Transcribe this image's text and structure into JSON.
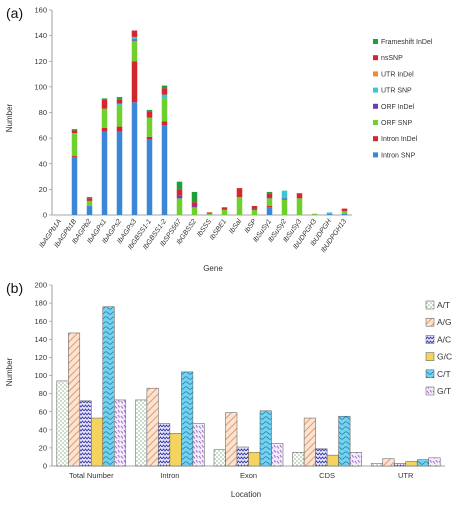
{
  "chart_data": [
    {
      "type": "bar",
      "stacked": true,
      "panel_label": "(a)",
      "xlabel": "Gene",
      "ylabel": "Number",
      "ylim": [
        0,
        160
      ],
      "yticks": [
        0,
        20,
        40,
        60,
        80,
        100,
        120,
        140,
        160
      ],
      "legend_position": "right",
      "categories": [
        "IbAGPb1A",
        "IbAGPb1B",
        "IbAGPb2",
        "IbAGPs1",
        "IbAGPs2",
        "IbAGPs3",
        "IbGBSS1-1",
        "IbGBSS1-2",
        "IbSPS567",
        "IbGBSS2",
        "IbSSS",
        "IbSBE1",
        "IbSal",
        "IbSP",
        "IbSuSy1",
        "IbSuSy2",
        "IbSuSy3",
        "IbUDPGH3",
        "IbUDPGH",
        "IbUDPGH13"
      ],
      "series": [
        {
          "name": "Intron SNP",
          "color": "#3b86d6",
          "values": [
            0,
            45,
            7,
            65,
            65,
            88,
            59,
            70,
            0,
            0,
            0,
            0,
            0,
            0,
            6,
            0,
            0,
            0,
            1,
            1
          ]
        },
        {
          "name": "Intron InDel",
          "color": "#d4262e",
          "values": [
            0,
            1,
            0,
            3,
            4,
            32,
            2,
            3,
            0,
            0,
            0,
            0,
            0,
            0,
            1,
            0,
            0,
            0,
            0,
            0
          ]
        },
        {
          "name": "ORF SNP",
          "color": "#6fcf2c",
          "values": [
            0,
            18,
            4,
            15,
            16,
            16,
            15,
            18,
            13,
            6,
            1,
            4,
            14,
            4,
            6,
            12,
            13,
            1,
            0,
            2
          ]
        },
        {
          "name": "ORF InDel",
          "color": "#6a3db3",
          "values": [
            0,
            0,
            0,
            0,
            0,
            1,
            0,
            0,
            2,
            1,
            0,
            0,
            0,
            1,
            1,
            1,
            0,
            0,
            0,
            0
          ]
        },
        {
          "name": "UTR SNP",
          "color": "#3cc6cf",
          "values": [
            0,
            0,
            0,
            0,
            2,
            2,
            0,
            3,
            0,
            0,
            0,
            0,
            0,
            0,
            0,
            6,
            0,
            0,
            1,
            0
          ]
        },
        {
          "name": "UTR InDel",
          "color": "#f48a22",
          "values": [
            0,
            0,
            0,
            0,
            0,
            0,
            0,
            0,
            0,
            0,
            0,
            0,
            0,
            0,
            0,
            0,
            0,
            0,
            0,
            0
          ]
        },
        {
          "name": "nsSNP",
          "color": "#d4262e",
          "values": [
            0,
            2,
            2,
            7,
            3,
            5,
            5,
            5,
            5,
            3,
            1,
            2,
            7,
            2,
            3,
            0,
            4,
            0,
            0,
            2
          ]
        },
        {
          "name": "Frameshift InDel",
          "color": "#1f9e3a",
          "values": [
            0,
            1,
            1,
            1,
            2,
            0,
            1,
            2,
            6,
            8,
            0,
            0,
            0,
            0,
            1,
            0,
            0,
            0,
            0,
            0
          ]
        }
      ]
    },
    {
      "type": "bar",
      "panel_label": "(b)",
      "xlabel": "Location",
      "ylabel": "Number",
      "ylim": [
        0,
        200
      ],
      "yticks": [
        0,
        20,
        40,
        60,
        80,
        100,
        120,
        140,
        160,
        180,
        200
      ],
      "legend_position": "right",
      "categories": [
        "Total Number",
        "Intron",
        "Exon",
        "CDS",
        "UTR"
      ],
      "series": [
        {
          "name": "A/T",
          "color": "#ffffff",
          "pattern": "dots",
          "values": [
            94,
            73,
            18,
            15,
            3
          ]
        },
        {
          "name": "A/G",
          "color": "#f7c9a8",
          "pattern": "diagonal",
          "values": [
            147,
            86,
            59,
            53,
            8
          ]
        },
        {
          "name": "A/C",
          "color": "#c8c8f0",
          "pattern": "zigzag",
          "values": [
            72,
            47,
            21,
            19,
            3
          ]
        },
        {
          "name": "G/C",
          "color": "#f4d35e",
          "pattern": "solid",
          "values": [
            53,
            36,
            15,
            12,
            5
          ]
        },
        {
          "name": "C/T",
          "color": "#5cc8e8",
          "pattern": "waves",
          "values": [
            176,
            104,
            61,
            55,
            7
          ]
        },
        {
          "name": "G/T",
          "color": "#e6d8f2",
          "pattern": "dashes",
          "values": [
            73,
            47,
            25,
            15,
            9
          ]
        }
      ]
    }
  ]
}
